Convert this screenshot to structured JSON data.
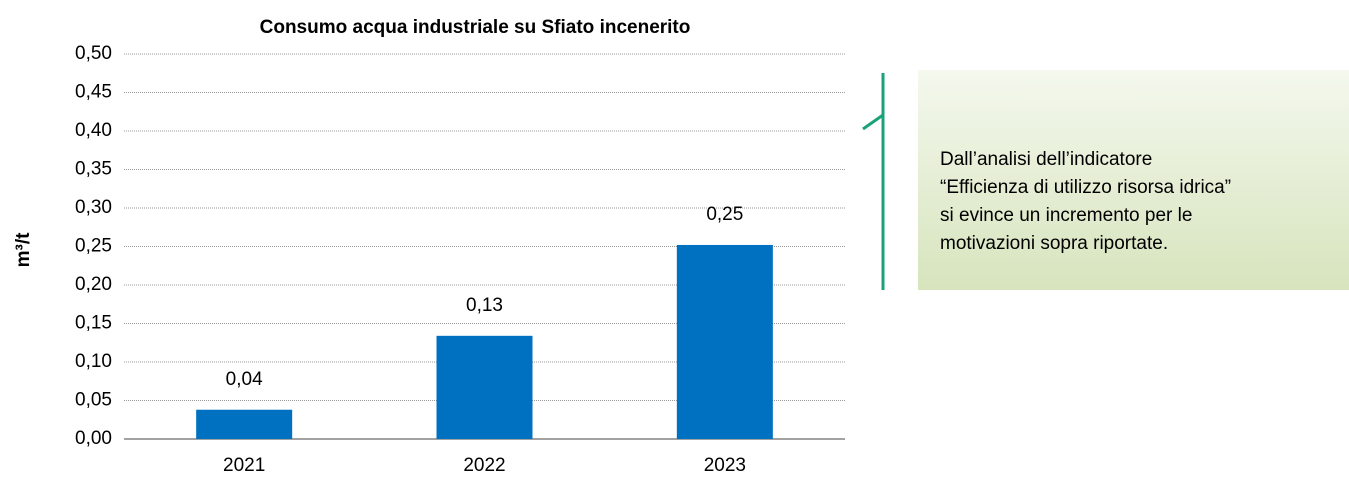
{
  "chart_data": {
    "type": "bar",
    "title": "Consumo acqua industriale su Sfiato incenerito",
    "y_label": "m³/t",
    "categories": [
      "2021",
      "2022",
      "2023"
    ],
    "values": [
      0.038,
      0.134,
      0.252
    ],
    "value_labels": [
      "0,04",
      "0,13",
      "0,25"
    ],
    "color": "#0070c0",
    "ylim": [
      0,
      0.5
    ],
    "yticks": [
      {
        "value": 0,
        "label": "0,00"
      },
      {
        "value": 0.05,
        "label": "0,05"
      },
      {
        "value": 0.1,
        "label": "0,10"
      },
      {
        "value": 0.15,
        "label": "0,15"
      },
      {
        "value": 0.2,
        "label": "0,20"
      },
      {
        "value": 0.25,
        "label": "0,25"
      },
      {
        "value": 0.3,
        "label": "0,30"
      },
      {
        "value": 0.35,
        "label": "0,35"
      },
      {
        "value": 0.4,
        "label": "0,40"
      },
      {
        "value": 0.45,
        "label": "0,45"
      },
      {
        "value": 0.5,
        "label": "0,50"
      }
    ],
    "grid": true
  },
  "note_box": {
    "lines": [
      "Dall’analisi dell’indicatore",
      "“Efficienza di utilizzo risorsa idrica”",
      "si evince un incremento per le",
      "motivazioni sopra riportate."
    ]
  }
}
